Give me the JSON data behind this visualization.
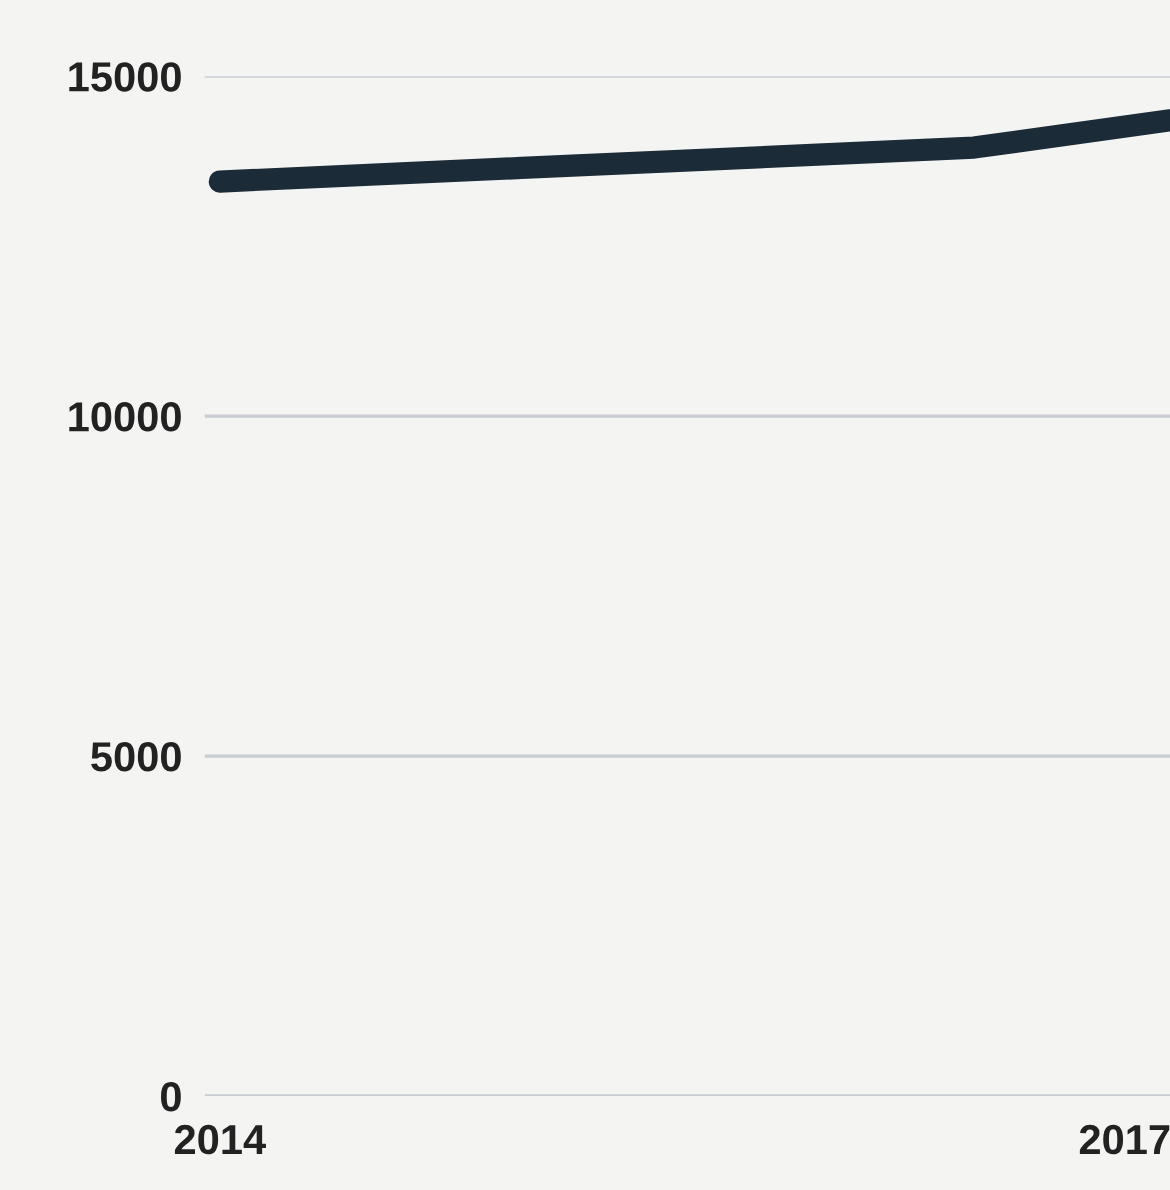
{
  "chart_data": {
    "type": "line",
    "x": [
      2014,
      2015,
      2016,
      2016.5,
      2017.15
    ],
    "series": [
      {
        "color": "#1b2b38",
        "values": [
          13450,
          13650,
          13850,
          13950,
          14350
        ]
      }
    ],
    "xlim": [
      2013.95,
      2017.15
    ],
    "xticks": [
      2014,
      2017
    ],
    "ylim": [
      0,
      15000
    ],
    "yticks": [
      0,
      5000,
      10000,
      15000
    ],
    "grid": "y",
    "line_style": "solid"
  }
}
